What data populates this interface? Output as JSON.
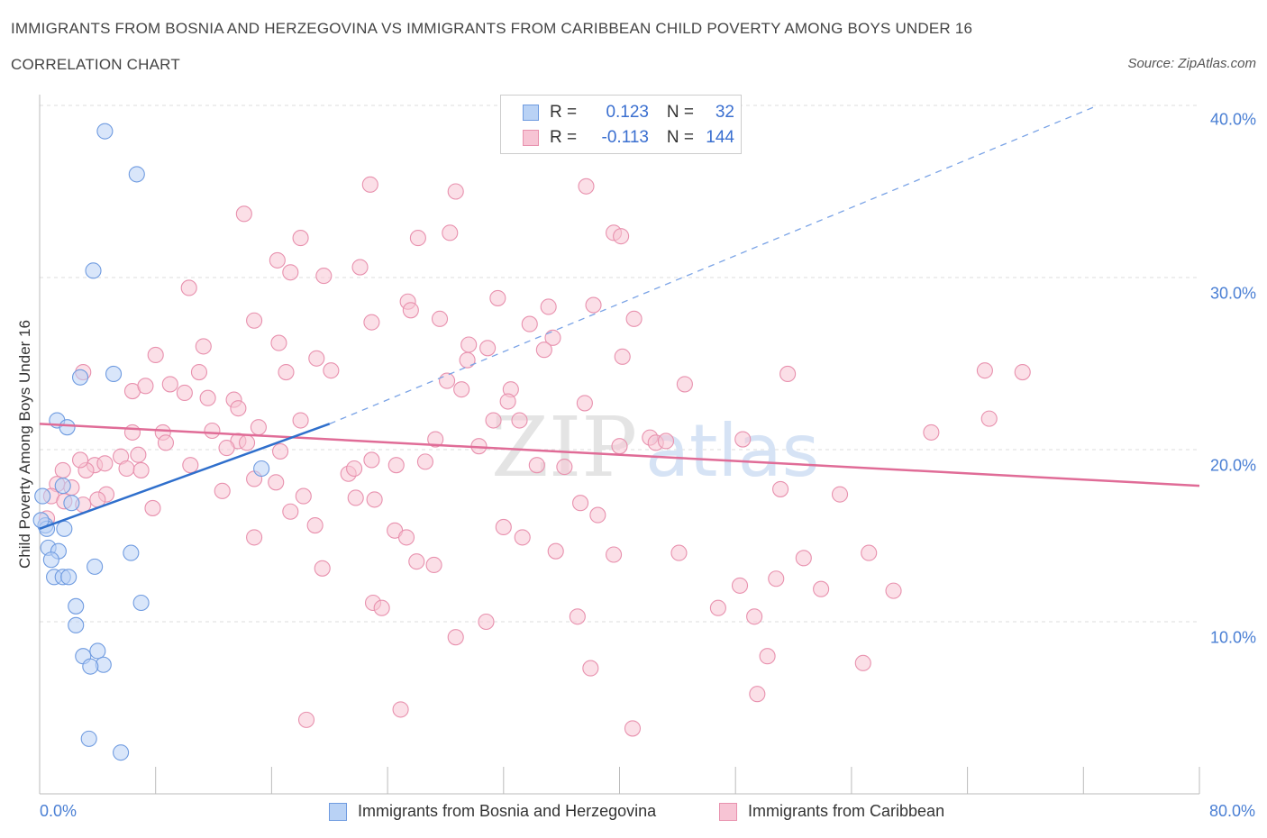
{
  "header": {
    "title": "IMMIGRANTS FROM BOSNIA AND HERZEGOVINA VS IMMIGRANTS FROM CARIBBEAN CHILD POVERTY AMONG BOYS UNDER 16",
    "subtitle": "CORRELATION CHART",
    "source": "Source: ZipAtlas.com"
  },
  "legend": {
    "r_label": "R =",
    "n_label": "N =",
    "rows": [
      {
        "r": "0.123",
        "n": "32",
        "color": "#b9d2f5",
        "border": "#6f9be0"
      },
      {
        "r": "-0.113",
        "n": "144",
        "color": "#f7c4d4",
        "border": "#e891ae"
      }
    ]
  },
  "watermark": {
    "zip": "ZIP",
    "atlas": "atlas"
  },
  "chart_data": {
    "type": "scatter",
    "title": "IMMIGRANTS FROM BOSNIA AND HERZEGOVINA VS IMMIGRANTS FROM CARIBBEAN CHILD POVERTY AMONG BOYS UNDER 16",
    "xlabel": "",
    "ylabel": "Child Poverty Among Boys Under 16",
    "xlim": [
      0,
      80
    ],
    "ylim": [
      0,
      40
    ],
    "x_tick_labels": [
      "0.0%",
      "80.0%"
    ],
    "y_tick_labels": [
      "10.0%",
      "20.0%",
      "30.0%",
      "40.0%"
    ],
    "y_ticks": [
      10,
      20,
      30,
      40
    ],
    "grid": "horizontal dashed",
    "legend_position": "bottom",
    "series": [
      {
        "name": "Immigrants from Bosnia and Herzegovina",
        "color": "#6f9be0",
        "fill": "#b9d2f5",
        "trend": {
          "x0": 0,
          "y0": 15.4,
          "x1": 20.0,
          "y1": 21.5,
          "dashed_to_x": 73.0,
          "dashed_to_y": 40.0,
          "color": "#2f6fcc"
        },
        "points": [
          [
            4.5,
            38.5
          ],
          [
            6.7,
            36.0
          ],
          [
            3.7,
            30.4
          ],
          [
            5.1,
            24.4
          ],
          [
            2.8,
            24.2
          ],
          [
            1.2,
            21.7
          ],
          [
            1.9,
            21.3
          ],
          [
            0.2,
            17.3
          ],
          [
            1.6,
            17.9
          ],
          [
            2.2,
            16.9
          ],
          [
            0.4,
            15.6
          ],
          [
            0.5,
            15.4
          ],
          [
            1.7,
            15.4
          ],
          [
            0.6,
            14.3
          ],
          [
            1.3,
            14.1
          ],
          [
            0.8,
            13.6
          ],
          [
            6.3,
            14.0
          ],
          [
            3.8,
            13.2
          ],
          [
            1.0,
            12.6
          ],
          [
            1.6,
            12.6
          ],
          [
            2.0,
            12.6
          ],
          [
            7.0,
            11.1
          ],
          [
            2.5,
            10.9
          ],
          [
            2.5,
            9.8
          ],
          [
            3.0,
            8.0
          ],
          [
            4.0,
            8.3
          ],
          [
            4.4,
            7.5
          ],
          [
            3.5,
            7.4
          ],
          [
            3.4,
            3.2
          ],
          [
            5.6,
            2.4
          ],
          [
            15.3,
            18.9
          ],
          [
            0.1,
            15.9
          ]
        ]
      },
      {
        "name": "Immigrants from Caribbean",
        "color": "#e891ae",
        "fill": "#f7c4d4",
        "trend": {
          "x0": 0,
          "y0": 21.5,
          "x1": 80,
          "y1": 17.9,
          "color": "#e06c97"
        },
        "points": [
          [
            22.8,
            35.4
          ],
          [
            28.7,
            35.0
          ],
          [
            37.7,
            35.3
          ],
          [
            14.1,
            33.7
          ],
          [
            18.0,
            32.3
          ],
          [
            26.1,
            32.3
          ],
          [
            28.3,
            32.6
          ],
          [
            39.6,
            32.6
          ],
          [
            40.1,
            32.4
          ],
          [
            16.4,
            31.0
          ],
          [
            22.1,
            30.6
          ],
          [
            17.3,
            30.3
          ],
          [
            19.6,
            30.1
          ],
          [
            10.3,
            29.4
          ],
          [
            25.4,
            28.6
          ],
          [
            25.6,
            28.1
          ],
          [
            31.6,
            28.8
          ],
          [
            35.1,
            28.3
          ],
          [
            38.2,
            28.4
          ],
          [
            14.8,
            27.5
          ],
          [
            22.9,
            27.4
          ],
          [
            27.6,
            27.6
          ],
          [
            33.8,
            27.3
          ],
          [
            41.0,
            27.6
          ],
          [
            35.4,
            26.5
          ],
          [
            16.5,
            26.2
          ],
          [
            29.6,
            26.1
          ],
          [
            30.9,
            25.9
          ],
          [
            11.3,
            26.0
          ],
          [
            8.0,
            25.5
          ],
          [
            19.1,
            25.3
          ],
          [
            34.8,
            25.8
          ],
          [
            40.2,
            25.4
          ],
          [
            3.0,
            24.5
          ],
          [
            11.0,
            24.5
          ],
          [
            17.0,
            24.5
          ],
          [
            20.1,
            24.6
          ],
          [
            29.5,
            25.2
          ],
          [
            51.6,
            24.4
          ],
          [
            65.2,
            24.6
          ],
          [
            67.8,
            24.5
          ],
          [
            6.4,
            23.4
          ],
          [
            7.3,
            23.7
          ],
          [
            9.0,
            23.8
          ],
          [
            10.0,
            23.3
          ],
          [
            13.4,
            22.9
          ],
          [
            13.7,
            22.4
          ],
          [
            11.6,
            23.0
          ],
          [
            28.1,
            24.0
          ],
          [
            29.1,
            23.5
          ],
          [
            32.5,
            23.5
          ],
          [
            32.3,
            22.8
          ],
          [
            37.6,
            22.7
          ],
          [
            44.5,
            23.8
          ],
          [
            8.5,
            21.0
          ],
          [
            8.7,
            20.4
          ],
          [
            11.9,
            21.1
          ],
          [
            13.7,
            20.5
          ],
          [
            15.1,
            21.3
          ],
          [
            18.0,
            21.7
          ],
          [
            31.3,
            21.7
          ],
          [
            27.3,
            20.6
          ],
          [
            33.1,
            21.7
          ],
          [
            6.4,
            21.0
          ],
          [
            42.1,
            20.7
          ],
          [
            48.5,
            20.6
          ],
          [
            61.5,
            21.0
          ],
          [
            65.5,
            21.8
          ],
          [
            5.6,
            19.6
          ],
          [
            6.8,
            19.7
          ],
          [
            3.8,
            19.1
          ],
          [
            3.2,
            18.8
          ],
          [
            10.4,
            19.1
          ],
          [
            12.9,
            20.1
          ],
          [
            14.3,
            20.4
          ],
          [
            16.3,
            18.1
          ],
          [
            16.6,
            19.9
          ],
          [
            21.3,
            18.6
          ],
          [
            21.7,
            18.9
          ],
          [
            21.8,
            17.2
          ],
          [
            22.9,
            19.4
          ],
          [
            24.6,
            19.1
          ],
          [
            26.6,
            19.3
          ],
          [
            30.3,
            20.2
          ],
          [
            34.3,
            19.1
          ],
          [
            36.2,
            19.0
          ],
          [
            40.0,
            20.2
          ],
          [
            42.5,
            20.4
          ],
          [
            43.2,
            20.5
          ],
          [
            2.8,
            19.4
          ],
          [
            1.6,
            18.8
          ],
          [
            1.2,
            18.0
          ],
          [
            0.8,
            17.3
          ],
          [
            1.7,
            17.0
          ],
          [
            2.2,
            17.8
          ],
          [
            4.5,
            19.2
          ],
          [
            6.0,
            18.9
          ],
          [
            4.6,
            17.4
          ],
          [
            4.0,
            17.1
          ],
          [
            7.0,
            18.8
          ],
          [
            12.6,
            17.6
          ],
          [
            14.8,
            18.3
          ],
          [
            18.2,
            17.3
          ],
          [
            17.3,
            16.4
          ],
          [
            23.1,
            17.1
          ],
          [
            37.3,
            16.9
          ],
          [
            51.1,
            17.7
          ],
          [
            55.2,
            17.4
          ],
          [
            7.8,
            16.6
          ],
          [
            3.0,
            16.8
          ],
          [
            0.5,
            16.0
          ],
          [
            19.0,
            15.6
          ],
          [
            24.5,
            15.3
          ],
          [
            25.3,
            14.9
          ],
          [
            32.0,
            15.5
          ],
          [
            33.3,
            14.9
          ],
          [
            38.5,
            16.2
          ],
          [
            35.6,
            14.1
          ],
          [
            14.8,
            14.9
          ],
          [
            19.5,
            13.1
          ],
          [
            26.0,
            13.5
          ],
          [
            27.2,
            13.3
          ],
          [
            39.6,
            13.9
          ],
          [
            44.1,
            14.0
          ],
          [
            52.7,
            13.7
          ],
          [
            57.2,
            14.0
          ],
          [
            23.0,
            11.1
          ],
          [
            23.6,
            10.8
          ],
          [
            30.8,
            10.0
          ],
          [
            37.1,
            10.3
          ],
          [
            46.8,
            10.8
          ],
          [
            48.3,
            12.1
          ],
          [
            50.8,
            12.5
          ],
          [
            53.9,
            11.9
          ],
          [
            58.9,
            11.8
          ],
          [
            56.8,
            7.6
          ],
          [
            38.0,
            7.3
          ],
          [
            28.7,
            9.1
          ],
          [
            49.3,
            10.3
          ],
          [
            50.2,
            8.0
          ],
          [
            40.9,
            3.8
          ],
          [
            49.5,
            5.8
          ],
          [
            24.9,
            4.9
          ],
          [
            18.4,
            4.3
          ]
        ]
      }
    ]
  }
}
